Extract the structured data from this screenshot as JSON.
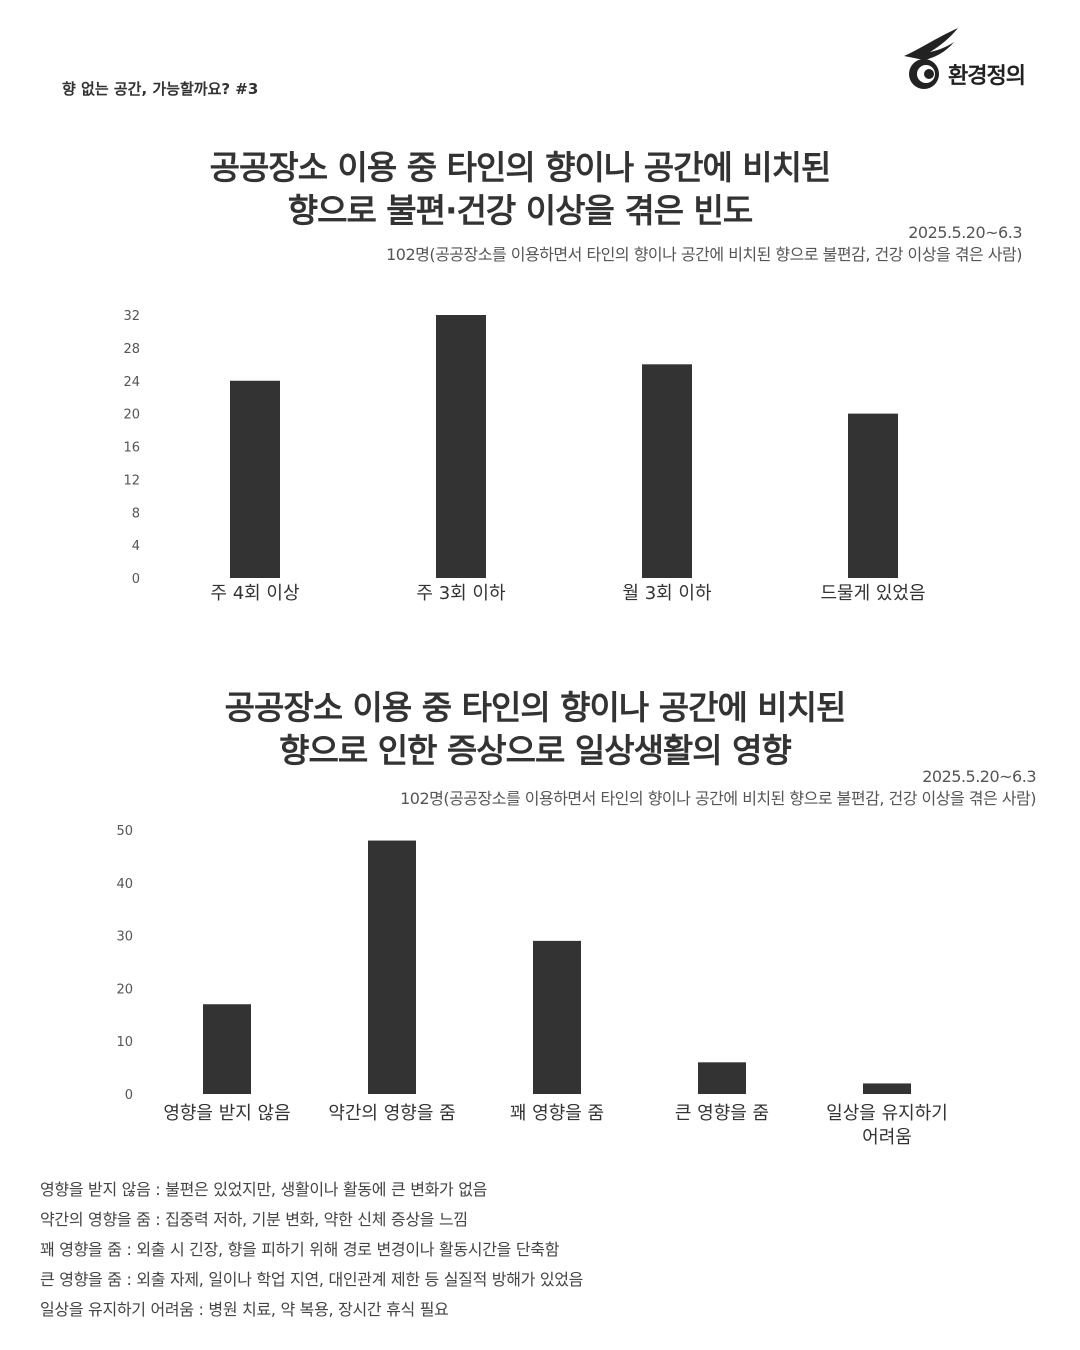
{
  "header": {
    "series_label": "향 없는 공간, 가능할까요? #3",
    "logo_text": "환경정의"
  },
  "chart_data": [
    {
      "type": "bar",
      "title_line1": "공공장소 이용 중 타인의 향이나 공간에 비치된",
      "title_line2": "향으로 불편·건강 이상을 겪은 빈도",
      "date_range": "2025.5.20~6.3",
      "sample_note": "102명(공공장소를 이용하면서 타인의 향이나 공간에 비치된 향으로 불편감, 건강 이상을 겪은 사람)",
      "categories": [
        "주 4회 이상",
        "주 3회 이하",
        "월 3회 이하",
        "드물게 있었음"
      ],
      "values": [
        24,
        32,
        26,
        20
      ],
      "ylim": [
        0,
        32
      ],
      "yticks": [
        0,
        4,
        8,
        12,
        16,
        20,
        24,
        28,
        32
      ],
      "bar_color": "#333333",
      "grid": false
    },
    {
      "type": "bar",
      "title_line1": "공공장소 이용 중 타인의 향이나 공간에 비치된",
      "title_line2": "향으로 인한 증상으로 일상생활의 영향",
      "date_range": "2025.5.20~6.3",
      "sample_note": "102명(공공장소를 이용하면서 타인의 향이나 공간에 비치된 향으로 불편감, 건강 이상을 겪은 사람)",
      "categories": [
        "영향을 받지 않음",
        "약간의 영향을 줌",
        "꽤 영향을 줌",
        "큰 영향을 줌",
        "일상을 유지하기\n어려움"
      ],
      "values": [
        17,
        48,
        29,
        6,
        2
      ],
      "ylim": [
        0,
        50
      ],
      "yticks": [
        0,
        10,
        20,
        30,
        40,
        50
      ],
      "bar_color": "#333333",
      "grid": false
    }
  ],
  "notes": [
    "영향을 받지 않음 : 불편은 있었지만, 생활이나 활동에 큰 변화가 없음",
    "약간의 영향을 줌 : 집중력 저하, 기분 변화, 약한 신체 증상을 느낌",
    "꽤 영향을 줌 : 외출 시 긴장, 향을 피하기 위해 경로 변경이나 활동시간을 단축함",
    "큰 영향을 줌 : 외출 자제, 일이나 학업 지연, 대인관계 제한 등 실질적 방해가 있었음",
    "일상을 유지하기 어려움 : 병원 치료, 약 복용, 장시간 휴식 필요"
  ]
}
